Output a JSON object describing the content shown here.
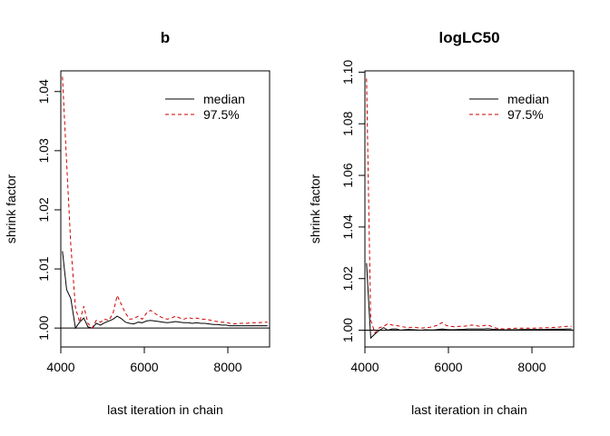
{
  "chart_data": [
    {
      "type": "line",
      "title": "b",
      "xlabel": "last iteration in chain",
      "ylabel": "shrink factor",
      "xlim": [
        4000,
        9000
      ],
      "ylim": [
        0.9968,
        1.0435
      ],
      "xticks": [
        "4000",
        "6000",
        "8000"
      ],
      "xtick_values": [
        4000,
        6000,
        8000
      ],
      "yticks": [
        "1.00",
        "1.01",
        "1.02",
        "1.03",
        "1.04"
      ],
      "ytick_values": [
        1.0,
        1.01,
        1.02,
        1.03,
        1.04
      ],
      "reference_line": 1.0,
      "legend": {
        "position": "top-right",
        "entries": [
          "median",
          "97.5%"
        ]
      },
      "x": [
        4040,
        4140,
        4240,
        4350,
        4450,
        4550,
        4650,
        4750,
        4850,
        4950,
        5050,
        5150,
        5250,
        5350,
        5450,
        5550,
        5650,
        5750,
        5850,
        5950,
        6050,
        6150,
        6250,
        6350,
        6450,
        6550,
        6650,
        6750,
        6850,
        6950,
        7050,
        7150,
        7250,
        7350,
        7450,
        7550,
        7650,
        7750,
        7850,
        7950,
        8050,
        8150,
        8250,
        8350,
        8450,
        8550,
        8650,
        8750,
        8850,
        8950
      ],
      "series": [
        {
          "name": "median",
          "color": "#000000",
          "dash": "solid",
          "values": [
            1.013,
            1.0065,
            1.005,
            1.0,
            1.001,
            1.0017,
            1.0002,
            1.0,
            1.0008,
            1.0005,
            1.0009,
            1.0012,
            1.0015,
            1.002,
            1.0016,
            1.001,
            1.0008,
            1.0007,
            1.001,
            1.0009,
            1.0012,
            1.0013,
            1.0012,
            1.0011,
            1.001,
            1.0009,
            1.001,
            1.0011,
            1.001,
            1.0009,
            1.0009,
            1.0008,
            1.0009,
            1.0008,
            1.0008,
            1.0007,
            1.0006,
            1.0006,
            1.0005,
            1.0005,
            1.0004,
            1.0004,
            1.0004,
            1.0004,
            1.0004,
            1.0004,
            1.0004,
            1.0004,
            1.0004,
            1.0004
          ]
        },
        {
          "name": "97.5%",
          "color": "#cc0000",
          "dash": "dashed",
          "values": [
            1.0425,
            1.028,
            1.014,
            1.0035,
            1.001,
            1.0037,
            1.0008,
            1.0,
            1.0013,
            1.001,
            1.0015,
            1.0013,
            1.0025,
            1.0055,
            1.004,
            1.0025,
            1.0015,
            1.0016,
            1.002,
            1.0015,
            1.0025,
            1.003,
            1.0025,
            1.002,
            1.0017,
            1.0015,
            1.0017,
            1.002,
            1.0017,
            1.0015,
            1.0018,
            1.0016,
            1.0017,
            1.0015,
            1.0015,
            1.0014,
            1.0012,
            1.0011,
            1.001,
            1.001,
            1.0008,
            1.0007,
            1.0008,
            1.0008,
            1.0008,
            1.0009,
            1.0009,
            1.0009,
            1.001,
            1.001
          ]
        }
      ]
    },
    {
      "type": "line",
      "title": "logLC50",
      "xlabel": "last iteration in chain",
      "ylabel": "shrink factor",
      "xlim": [
        4000,
        9000
      ],
      "ylim": [
        0.9935,
        1.1005
      ],
      "xticks": [
        "4000",
        "6000",
        "8000"
      ],
      "xtick_values": [
        4000,
        6000,
        8000
      ],
      "yticks": [
        "1.00",
        "1.02",
        "1.04",
        "1.06",
        "1.08",
        "1.10"
      ],
      "ytick_values": [
        1.0,
        1.02,
        1.04,
        1.06,
        1.08,
        1.1
      ],
      "reference_line": 1.0,
      "legend": {
        "position": "top-right",
        "entries": [
          "median",
          "97.5%"
        ]
      },
      "x": [
        4040,
        4140,
        4240,
        4350,
        4450,
        4550,
        4650,
        4750,
        4850,
        4950,
        5050,
        5150,
        5250,
        5350,
        5450,
        5550,
        5650,
        5750,
        5850,
        5950,
        6050,
        6150,
        6250,
        6350,
        6450,
        6550,
        6650,
        6750,
        6850,
        6950,
        7050,
        7150,
        7250,
        7350,
        7450,
        7550,
        7650,
        7750,
        7850,
        7950,
        8050,
        8150,
        8250,
        8350,
        8450,
        8550,
        8650,
        8750,
        8850,
        8950
      ],
      "series": [
        {
          "name": "median",
          "color": "#000000",
          "dash": "solid",
          "values": [
            1.026,
            0.997,
            0.9985,
            1.0,
            1.001,
            1.0,
            1.0005,
            1.0005,
            1.0,
            1.0002,
            1.0003,
            1.0002,
            1.0001,
            1.0,
            1.0002,
            1.0001,
            1.0001,
            1.0003,
            1.0005,
            1.0003,
            1.0002,
            1.0002,
            1.0003,
            1.0003,
            1.0005,
            1.0005,
            1.0005,
            1.0005,
            1.0005,
            1.0006,
            1.0004,
            1.0003,
            1.0002,
            1.0001,
            1.0002,
            1.0002,
            1.0002,
            1.0003,
            1.0003,
            1.0003,
            1.0003,
            1.0003,
            1.0003,
            1.0003,
            1.0004,
            1.0004,
            1.0004,
            1.0004,
            1.0005,
            1.0005
          ]
        },
        {
          "name": "97.5%",
          "color": "#cc0000",
          "dash": "dashed",
          "values": [
            1.0975,
            1.004,
            0.999,
            1.001,
            1.0015,
            1.0025,
            1.002,
            1.0018,
            1.0015,
            1.0012,
            1.001,
            1.0012,
            1.001,
            1.0008,
            1.001,
            1.0011,
            1.0015,
            1.002,
            1.003,
            1.0018,
            1.0015,
            1.0013,
            1.0015,
            1.0015,
            1.0017,
            1.002,
            1.0018,
            1.0015,
            1.0018,
            1.002,
            1.0013,
            1.0008,
            1.0006,
            1.0005,
            1.0006,
            1.0007,
            1.0008,
            1.0008,
            1.0008,
            1.0008,
            1.0008,
            1.0009,
            1.0009,
            1.001,
            1.001,
            1.0011,
            1.0012,
            1.0014,
            1.0015,
            1.0015
          ]
        }
      ]
    }
  ]
}
